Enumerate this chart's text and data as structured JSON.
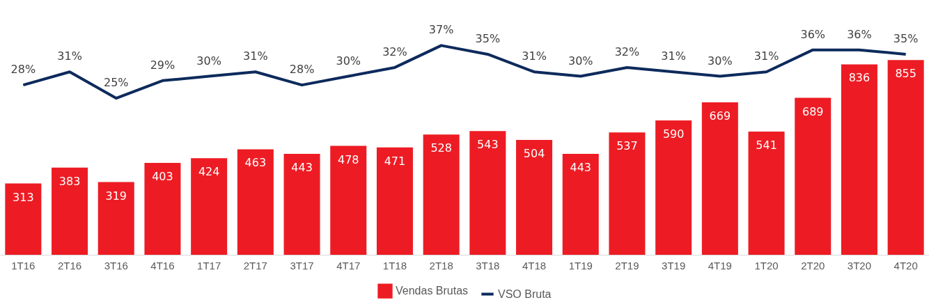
{
  "chart_data": {
    "type": "bar",
    "categories": [
      "1T16",
      "2T16",
      "3T16",
      "4T16",
      "1T17",
      "2T17",
      "3T17",
      "4T17",
      "1T18",
      "2T18",
      "3T18",
      "4T18",
      "1T19",
      "2T19",
      "3T19",
      "4T19",
      "1T20",
      "2T20",
      "3T20",
      "4T20"
    ],
    "series": [
      {
        "name": "Vendas Brutas",
        "color": "#ed1c24",
        "values": [
          313,
          383,
          319,
          403,
          424,
          463,
          443,
          478,
          471,
          528,
          543,
          504,
          443,
          537,
          590,
          669,
          541,
          689,
          836,
          855
        ]
      },
      {
        "name": "VSO Bruta",
        "type": "line",
        "axis": "y2",
        "color": "#0d2a5c",
        "values": [
          28,
          31,
          25,
          29,
          30,
          31,
          28,
          30,
          32,
          37,
          35,
          31,
          30,
          32,
          31,
          30,
          31,
          36,
          36,
          35
        ],
        "value_labels": [
          "28%",
          "31%",
          "25%",
          "29%",
          "30%",
          "31%",
          "28%",
          "30%",
          "32%",
          "37%",
          "35%",
          "31%",
          "30%",
          "32%",
          "31%",
          "30%",
          "31%",
          "36%",
          "36%",
          "35%"
        ]
      }
    ],
    "data_labels": true,
    "legend": "bottom",
    "tick_labels": "x"
  }
}
